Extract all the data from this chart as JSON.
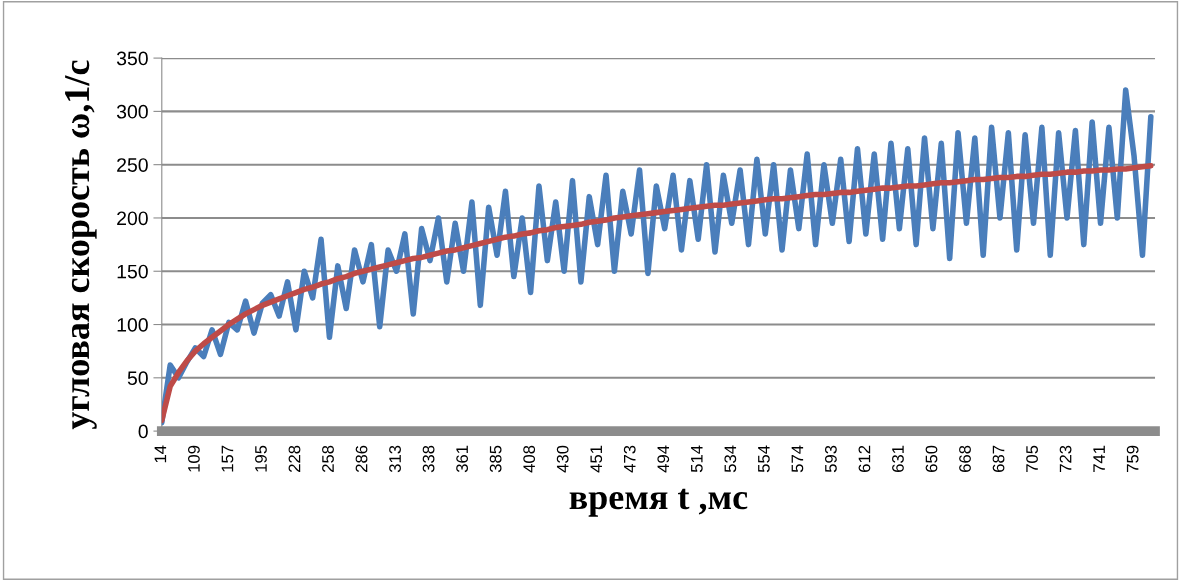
{
  "chart_data": {
    "type": "line",
    "xlabel": "время t ,мс",
    "ylabel": "угловая скорость ω,1/с",
    "categories": [
      "14",
      null,
      null,
      null,
      "109",
      null,
      null,
      null,
      "157",
      null,
      null,
      null,
      "195",
      null,
      null,
      null,
      "228",
      null,
      null,
      null,
      "258",
      null,
      null,
      null,
      "286",
      null,
      null,
      null,
      "313",
      null,
      null,
      null,
      "338",
      null,
      null,
      null,
      "361",
      null,
      null,
      null,
      "385",
      null,
      null,
      null,
      "408",
      null,
      null,
      null,
      "430",
      null,
      null,
      null,
      "451",
      null,
      null,
      null,
      "473",
      null,
      null,
      null,
      "494",
      null,
      null,
      null,
      "514",
      null,
      null,
      null,
      "534",
      null,
      null,
      null,
      "554",
      null,
      null,
      null,
      "574",
      null,
      null,
      null,
      "593",
      null,
      null,
      null,
      "612",
      null,
      null,
      null,
      "631",
      null,
      null,
      null,
      "650",
      null,
      null,
      null,
      "668",
      null,
      null,
      null,
      "687",
      null,
      null,
      null,
      "705",
      null,
      null,
      null,
      "723",
      null,
      null,
      null,
      "741",
      null,
      null,
      null,
      "759",
      null,
      null
    ],
    "series": [
      {
        "color": "#4a7ebb",
        "values": [
          8,
          62,
          50,
          65,
          78,
          70,
          95,
          72,
          102,
          95,
          122,
          92,
          120,
          128,
          108,
          140,
          95,
          150,
          125,
          180,
          88,
          155,
          115,
          170,
          140,
          175,
          98,
          170,
          150,
          185,
          110,
          190,
          160,
          200,
          140,
          195,
          150,
          215,
          118,
          210,
          165,
          225,
          145,
          200,
          130,
          230,
          160,
          215,
          150,
          235,
          140,
          220,
          175,
          240,
          150,
          225,
          185,
          245,
          148,
          230,
          190,
          240,
          170,
          235,
          180,
          250,
          168,
          240,
          195,
          245,
          175,
          255,
          185,
          250,
          170,
          245,
          190,
          260,
          175,
          250,
          195,
          255,
          178,
          265,
          185,
          260,
          180,
          270,
          190,
          265,
          175,
          275,
          190,
          270,
          162,
          280,
          195,
          275,
          165,
          285,
          200,
          280,
          170,
          278,
          195,
          285,
          165,
          280,
          200,
          282,
          175,
          290,
          195,
          285,
          200,
          320,
          258,
          165,
          295
        ]
      },
      {
        "color": "#be4b48",
        "values": [
          10,
          42,
          55,
          66,
          75,
          82,
          88,
          94,
          100,
          105,
          110,
          114,
          118,
          121,
          124,
          127,
          130,
          133,
          135,
          138,
          140,
          143,
          145,
          148,
          150,
          152,
          154,
          156,
          158,
          160,
          162,
          163,
          165,
          167,
          169,
          170,
          172,
          174,
          176,
          178,
          180,
          182,
          183,
          185,
          186,
          188,
          189,
          191,
          192,
          193,
          194,
          196,
          197,
          198,
          200,
          201,
          202,
          203,
          204,
          205,
          206,
          207,
          208,
          209,
          210,
          211,
          212,
          212,
          213,
          214,
          215,
          216,
          217,
          218,
          218,
          219,
          220,
          221,
          222,
          222,
          223,
          224,
          224,
          225,
          226,
          227,
          228,
          228,
          229,
          230,
          230,
          231,
          232,
          233,
          233,
          234,
          235,
          236,
          236,
          237,
          238,
          238,
          239,
          239,
          240,
          241,
          241,
          242,
          243,
          243,
          244,
          244,
          245,
          245,
          246,
          246,
          247,
          248,
          249
        ]
      }
    ],
    "ylim": [
      0,
      350
    ],
    "yticks": [
      0,
      50,
      100,
      150,
      200,
      250,
      300,
      350
    ],
    "grid": "y"
  }
}
